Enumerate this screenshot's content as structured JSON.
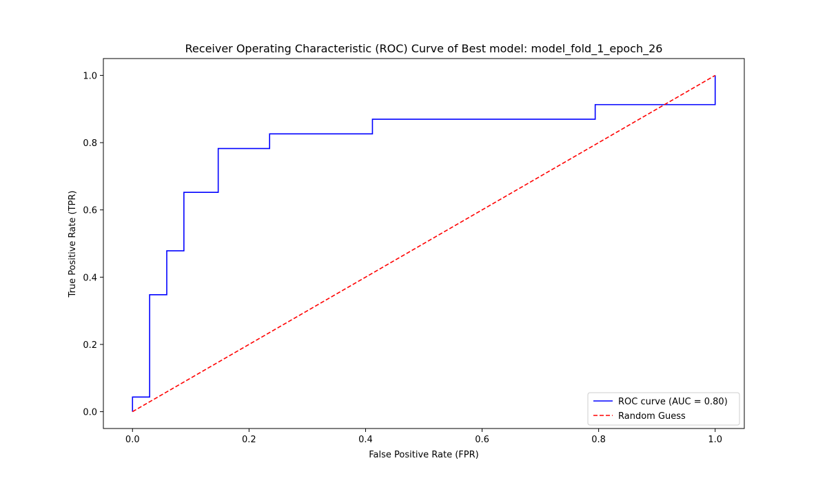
{
  "chart_data": {
    "type": "line",
    "title": "Receiver Operating Characteristic (ROC) Curve of Best model: model_fold_1_epoch_26",
    "xlabel": "False Positive Rate (FPR)",
    "ylabel": "True Positive Rate (TPR)",
    "xlim": [
      -0.05,
      1.05
    ],
    "ylim": [
      -0.05,
      1.05
    ],
    "xticks": [
      0.0,
      0.2,
      0.4,
      0.6,
      0.8,
      1.0
    ],
    "yticks": [
      0.0,
      0.2,
      0.4,
      0.6,
      0.8,
      1.0
    ],
    "xtick_labels": [
      "0.0",
      "0.2",
      "0.4",
      "0.6",
      "0.8",
      "1.0"
    ],
    "ytick_labels": [
      "0.0",
      "0.2",
      "0.4",
      "0.6",
      "0.8",
      "1.0"
    ],
    "grid": false,
    "legend_position": "lower-right",
    "series": [
      {
        "name": "ROC curve (AUC = 0.80)",
        "color": "#0000ff",
        "style": "solid",
        "step": true,
        "x": [
          0.0,
          0.0,
          0.0294,
          0.0294,
          0.0588,
          0.0588,
          0.0882,
          0.0882,
          0.1471,
          0.1471,
          0.2353,
          0.2353,
          0.4118,
          0.4118,
          0.7941,
          0.7941,
          1.0,
          1.0
        ],
        "y": [
          0.0,
          0.0435,
          0.0435,
          0.3478,
          0.3478,
          0.4783,
          0.4783,
          0.6522,
          0.6522,
          0.7826,
          0.7826,
          0.8261,
          0.8261,
          0.8696,
          0.8696,
          0.913,
          0.913,
          1.0
        ]
      },
      {
        "name": "Random Guess",
        "color": "#ff0000",
        "style": "dashed",
        "x": [
          0.0,
          1.0
        ],
        "y": [
          0.0,
          1.0
        ]
      }
    ]
  }
}
